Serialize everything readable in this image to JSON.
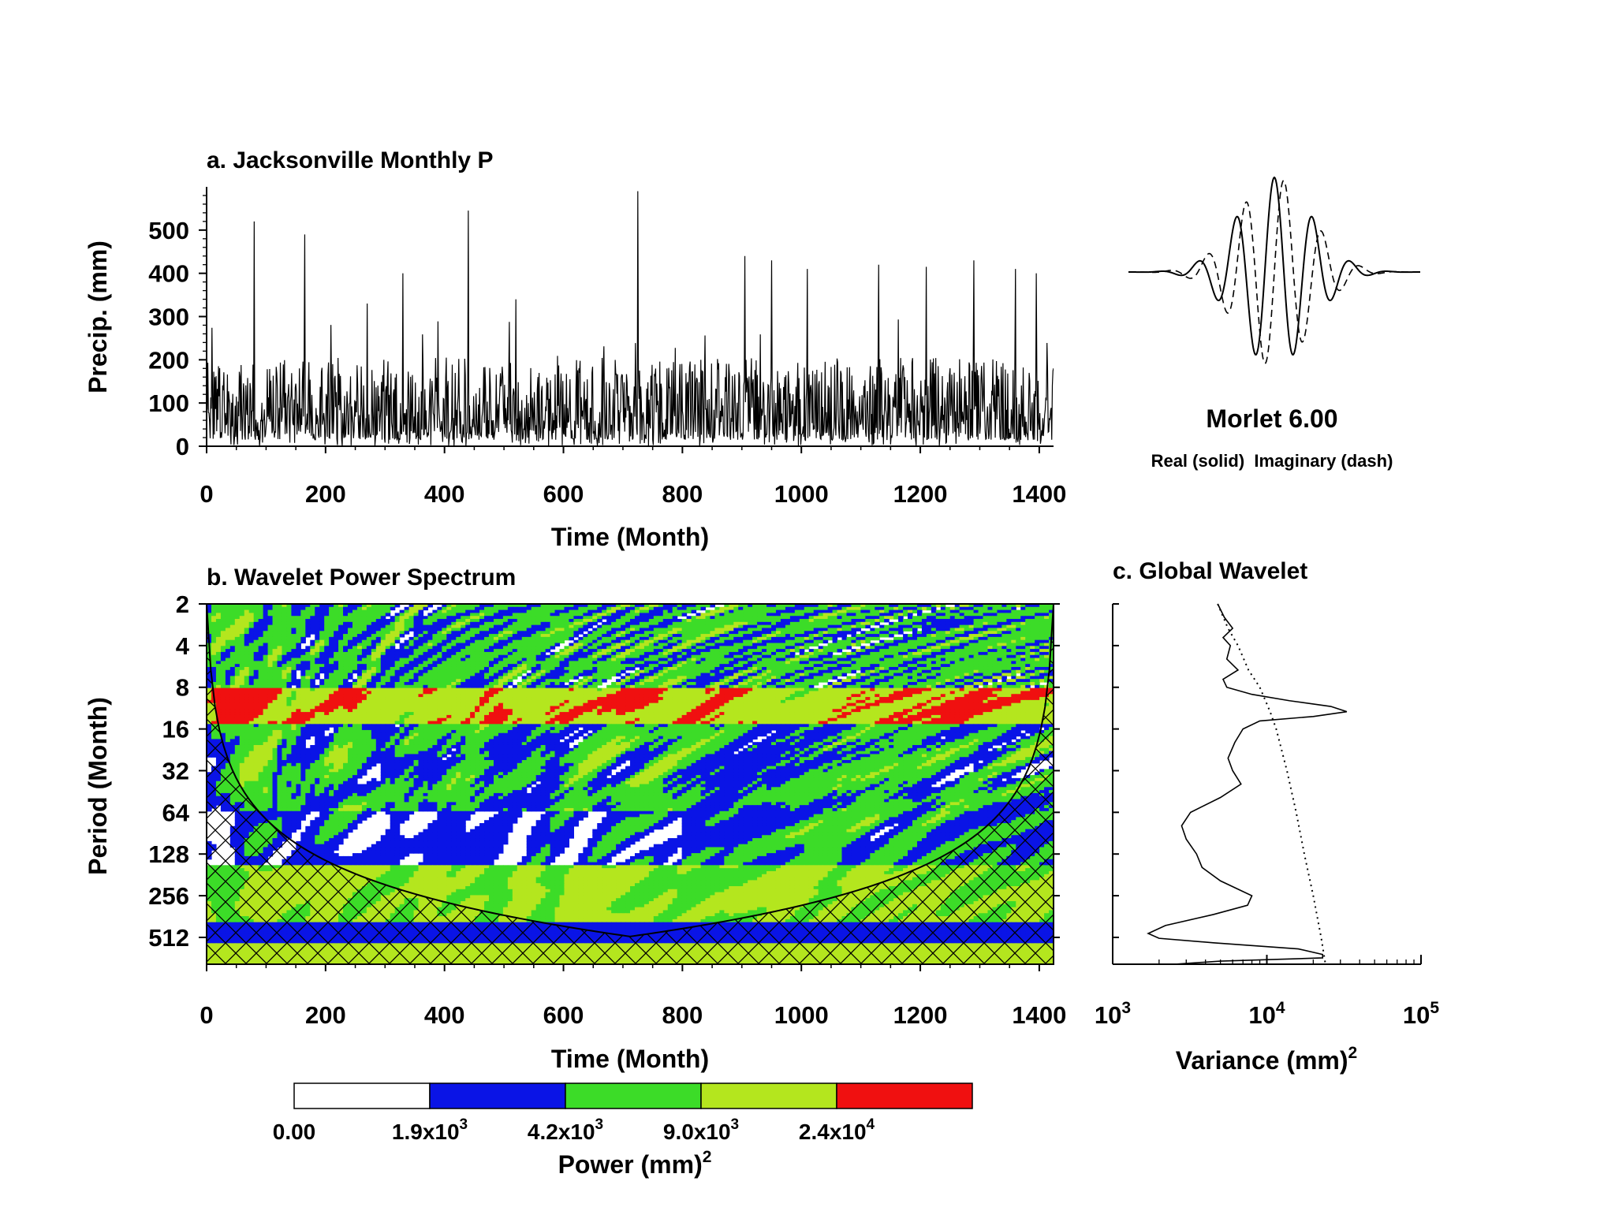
{
  "colors": {
    "background": "#ffffff",
    "line": "#000000",
    "level_white": "#ffffff",
    "level_blue": "#0a14e6",
    "level_green": "#3cdc28",
    "level_yellowgreen": "#b4e61e",
    "level_red": "#f01010"
  },
  "chart_data": [
    {
      "id": "a",
      "type": "line",
      "title": "a. Jacksonville Monthly P",
      "xlabel": "Time (Month)",
      "ylabel": "Precip. (mm)",
      "xlim": [
        0,
        1424
      ],
      "ylim": [
        0,
        600
      ],
      "xticks": [
        "0",
        "200",
        "400",
        "600",
        "800",
        "1000",
        "1200",
        "1400"
      ],
      "yticks": [
        "0",
        "100",
        "200",
        "300",
        "400",
        "500"
      ],
      "series": [
        {
          "style": "solid",
          "peaks": [
            {
              "x": 80,
              "y": 520
            },
            {
              "x": 165,
              "y": 490
            },
            {
              "x": 270,
              "y": 330
            },
            {
              "x": 330,
              "y": 400
            },
            {
              "x": 440,
              "y": 545
            },
            {
              "x": 520,
              "y": 340
            },
            {
              "x": 725,
              "y": 590
            },
            {
              "x": 905,
              "y": 440
            },
            {
              "x": 950,
              "y": 430
            },
            {
              "x": 1010,
              "y": 410
            },
            {
              "x": 1130,
              "y": 420
            },
            {
              "x": 1210,
              "y": 415
            },
            {
              "x": 1290,
              "y": 430
            },
            {
              "x": 1360,
              "y": 410
            },
            {
              "x": 1395,
              "y": 400
            }
          ],
          "baseline_range_mm": [
            0,
            250
          ]
        }
      ]
    },
    {
      "id": "morlet",
      "type": "line",
      "title": "Morlet 6.00",
      "subtitle": "Real (solid)  Imaginary (dash)",
      "omega0": 6.0,
      "series": [
        {
          "name": "Real",
          "style": "solid"
        },
        {
          "name": "Imaginary",
          "style": "dash"
        }
      ]
    },
    {
      "id": "b",
      "type": "heatmap",
      "title": "b. Wavelet Power Spectrum",
      "xlabel": "Time (Month)",
      "ylabel": "Period (Month)",
      "xlim": [
        0,
        1424
      ],
      "ylim": [
        2,
        800
      ],
      "yscale": "log2",
      "xticks": [
        "0",
        "200",
        "400",
        "600",
        "800",
        "1000",
        "1200",
        "1400"
      ],
      "yticks": [
        "2",
        "4",
        "8",
        "16",
        "32",
        "64",
        "128",
        "256",
        "512"
      ],
      "colorbar": {
        "label": "Power (mm)",
        "label_superscript": "2",
        "levels": [
          {
            "mantissa": "0.00",
            "exp": ""
          },
          {
            "mantissa": "1.9x10",
            "exp": "3"
          },
          {
            "mantissa": "4.2x10",
            "exp": "3"
          },
          {
            "mantissa": "9.0x10",
            "exp": "3"
          },
          {
            "mantissa": "2.4x10",
            "exp": "4"
          }
        ],
        "level_values": [
          0,
          1900,
          4200,
          9000,
          24000
        ]
      },
      "period_bands": [
        {
          "period_from": 2,
          "period_to": 8,
          "level": "mixed"
        },
        {
          "period_from": 10,
          "period_to": 14,
          "level": "red-patches"
        },
        {
          "period_from": 16,
          "period_to": 64,
          "level": "green-white"
        },
        {
          "period_from": 64,
          "period_to": 160,
          "level": "white-blue"
        },
        {
          "period_from": 160,
          "period_to": 400,
          "level": "yellowgreen"
        },
        {
          "period_from": 400,
          "period_to": 560,
          "level": "blue"
        },
        {
          "period_from": 560,
          "period_to": 800,
          "level": "yellowgreen"
        }
      ],
      "cone_of_influence": true
    },
    {
      "id": "c",
      "type": "line",
      "title": "c. Global Wavelet",
      "xlabel": "Variance (mm)",
      "xlabel_superscript": "2",
      "xscale": "log",
      "xlim": [
        1000,
        100000
      ],
      "xticks": [
        {
          "mantissa": "10",
          "exp": "3"
        },
        {
          "mantissa": "10",
          "exp": "4"
        },
        {
          "mantissa": "10",
          "exp": "5"
        }
      ],
      "ylim": [
        2,
        800
      ],
      "yscale": "log2",
      "series": [
        {
          "style": "solid",
          "points": [
            [
              2,
              4800
            ],
            [
              2.5,
              5300
            ],
            [
              3,
              6000
            ],
            [
              3.5,
              5200
            ],
            [
              4,
              5800
            ],
            [
              5,
              5500
            ],
            [
              6,
              6500
            ],
            [
              7,
              5200
            ],
            [
              8,
              5500
            ],
            [
              9,
              8000
            ],
            [
              10,
              14000
            ],
            [
              11,
              26000
            ],
            [
              12,
              33000
            ],
            [
              13,
              20000
            ],
            [
              14,
              9000
            ],
            [
              16,
              7000
            ],
            [
              20,
              6200
            ],
            [
              26,
              5600
            ],
            [
              32,
              6000
            ],
            [
              40,
              6800
            ],
            [
              50,
              5000
            ],
            [
              64,
              3200
            ],
            [
              80,
              2800
            ],
            [
              100,
              3000
            ],
            [
              128,
              3500
            ],
            [
              160,
              3800
            ],
            [
              200,
              5000
            ],
            [
              256,
              8000
            ],
            [
              300,
              7500
            ],
            [
              350,
              4500
            ],
            [
              420,
              2200
            ],
            [
              480,
              1700
            ],
            [
              520,
              2000
            ],
            [
              560,
              4500
            ],
            [
              620,
              16000
            ],
            [
              680,
              23000
            ],
            [
              720,
              23000
            ],
            [
              760,
              5000
            ],
            [
              800,
              2500
            ]
          ]
        },
        {
          "style": "dotted",
          "points": [
            [
              2,
              4800
            ],
            [
              3,
              5600
            ],
            [
              4,
              6500
            ],
            [
              6,
              7600
            ],
            [
              8,
              9000
            ],
            [
              12,
              10500
            ],
            [
              16,
              11500
            ],
            [
              32,
              13500
            ],
            [
              64,
              15500
            ],
            [
              128,
              17500
            ],
            [
              256,
              20000
            ],
            [
              512,
              22500
            ],
            [
              800,
              24000
            ]
          ]
        }
      ]
    }
  ]
}
